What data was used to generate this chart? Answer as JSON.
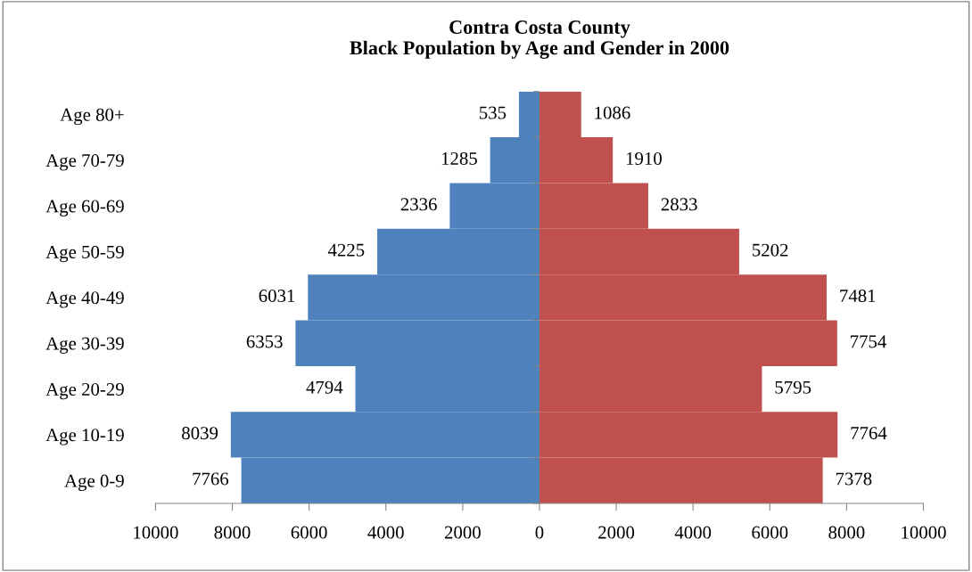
{
  "chart_data": {
    "type": "bar",
    "orientation": "horizontal",
    "title": "Contra Costa County\nBlack Population by Age and Gender in 2000",
    "categories": [
      "Age 80+",
      "Age 70-79",
      "Age 60-69",
      "Age 50-59",
      "Age 40-49",
      "Age 30-39",
      "Age 20-29",
      "Age 10-19",
      "Age 0-9"
    ],
    "series": [
      {
        "color": "#4f81bd",
        "values": [
          535,
          1285,
          2336,
          4225,
          6031,
          6353,
          4794,
          8039,
          7766
        ],
        "base": [
          -535,
          -1285,
          -2336,
          -4225,
          -6031,
          -6353,
          -4794,
          -8039,
          -7766
        ],
        "value_labels": [
          "535",
          "1285",
          "2336",
          "4225",
          "6031",
          "6353",
          "4794",
          "8039",
          "7766"
        ]
      },
      {
        "color": "#c0504d",
        "values": [
          1086,
          1910,
          2833,
          5202,
          7481,
          7754,
          5795,
          7764,
          7378
        ],
        "value_labels": [
          "1086",
          "1910",
          "2833",
          "5202",
          "7481",
          "7754",
          "5795",
          "7764",
          "7378"
        ]
      }
    ],
    "xlim": [
      -10000,
      10000
    ],
    "xticks": [
      {
        "value": -10000,
        "label": "10000"
      },
      {
        "value": -8000,
        "label": "8000"
      },
      {
        "value": -6000,
        "label": "6000"
      },
      {
        "value": -4000,
        "label": "4000"
      },
      {
        "value": -2000,
        "label": "2000"
      },
      0,
      2000,
      4000,
      6000,
      8000,
      10000
    ],
    "grid": false,
    "legend": false
  }
}
